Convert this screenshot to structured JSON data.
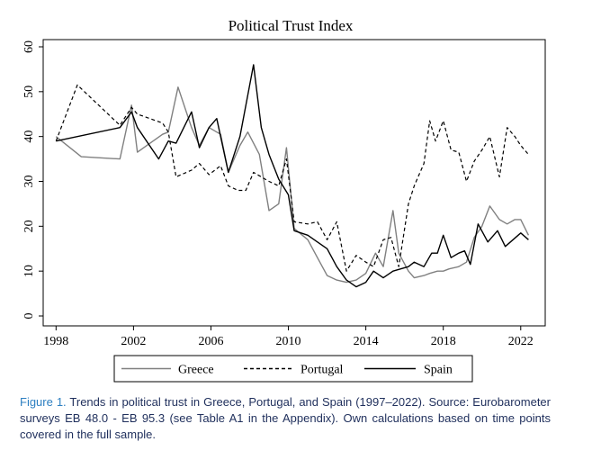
{
  "chart_data": {
    "type": "line",
    "title": "Political Trust Index",
    "xlabel": "",
    "ylabel": "",
    "xlim": [
      1997.8,
      2022.8
    ],
    "ylim": [
      0,
      60
    ],
    "xticks": [
      1998,
      2002,
      2006,
      2010,
      2014,
      2018,
      2022
    ],
    "yticks": [
      0,
      10,
      20,
      30,
      40,
      50,
      60
    ],
    "grid": false,
    "legend_position": "bottom",
    "series": [
      {
        "name": "Greece",
        "color": "#808080",
        "dash": "solid",
        "x": [
          1998,
          1999.3,
          2001.3,
          2001.9,
          2002.2,
          2003.5,
          2003.8,
          2004.3,
          2005,
          2005.4,
          2005.9,
          2006.5,
          2006.9,
          2007.5,
          2007.9,
          2008.5,
          2009,
          2009.5,
          2009.9,
          2010.3,
          2011,
          2011.5,
          2012,
          2012.5,
          2013,
          2013.5,
          2014,
          2014.5,
          2014.9,
          2015.4,
          2015.7,
          2016.2,
          2016.5,
          2017,
          2017.3,
          2017.7,
          2018,
          2018.3,
          2018.8,
          2019.2,
          2019.6,
          2020,
          2020.4,
          2020.9,
          2021.3,
          2021.7,
          2022,
          2022.4
        ],
        "values": [
          40,
          35.5,
          35,
          47,
          36.5,
          40.5,
          41,
          51,
          42,
          38,
          42,
          40.5,
          32,
          38,
          41,
          36,
          23.5,
          25,
          37.5,
          19.5,
          17,
          13,
          9,
          8,
          7.5,
          8,
          9.5,
          14,
          11,
          23.5,
          14,
          10,
          8.5,
          9,
          9.5,
          10,
          10,
          10.5,
          11,
          12,
          17.5,
          20,
          24.5,
          21.5,
          20.5,
          21.5,
          21.5,
          18
        ]
      },
      {
        "name": "Portugal",
        "color": "#000000",
        "dash": "dashed",
        "x": [
          1998,
          1999.1,
          2001.3,
          2001.9,
          2002.2,
          2003.5,
          2003.8,
          2004.2,
          2005,
          2005.4,
          2005.9,
          2006.5,
          2006.9,
          2007.4,
          2007.8,
          2008.2,
          2009,
          2009.5,
          2009.9,
          2010.3,
          2011,
          2011.5,
          2012,
          2012.5,
          2013,
          2013.5,
          2014,
          2014.4,
          2014.9,
          2015.3,
          2015.7,
          2016.2,
          2016.5,
          2017,
          2017.3,
          2017.6,
          2018,
          2018.4,
          2018.8,
          2019.2,
          2019.6,
          2020,
          2020.4,
          2020.9,
          2021.3,
          2021.7,
          2022,
          2022.4
        ],
        "values": [
          39,
          51.5,
          42.5,
          46.5,
          45,
          43,
          41,
          31,
          32.5,
          34,
          31.5,
          33.5,
          29,
          28,
          28,
          32,
          30,
          29,
          35,
          21,
          20.5,
          21,
          17,
          21,
          10,
          13.5,
          12,
          11,
          17,
          17.5,
          11,
          25,
          29,
          34,
          43.5,
          39,
          43.5,
          37,
          36.5,
          30,
          34.5,
          37,
          40,
          31,
          42,
          40,
          38,
          36
        ]
      },
      {
        "name": "Spain",
        "color": "#000000",
        "dash": "solid",
        "x": [
          1998,
          2001.3,
          2001.9,
          2002.2,
          2003.3,
          2003.8,
          2004.2,
          2005,
          2005.4,
          2005.9,
          2006.3,
          2006.9,
          2007.5,
          2008.2,
          2008.6,
          2009,
          2009.5,
          2010,
          2010.3,
          2011,
          2011.5,
          2012,
          2012.5,
          2013,
          2013.5,
          2014,
          2014.4,
          2014.9,
          2015.4,
          2015.8,
          2016.2,
          2016.5,
          2017,
          2017.4,
          2017.7,
          2018,
          2018.4,
          2018.8,
          2019.1,
          2019.4,
          2019.8,
          2020.3,
          2020.8,
          2021.2,
          2021.6,
          2022,
          2022.4
        ],
        "values": [
          39,
          42,
          45.5,
          42,
          35,
          39,
          38.5,
          45.5,
          37.5,
          42,
          44,
          32,
          40,
          56,
          42,
          36,
          30.5,
          27,
          19,
          18,
          16.5,
          15,
          11,
          8,
          6.5,
          7.5,
          10,
          8.5,
          10,
          10.5,
          11,
          12,
          11,
          14,
          14,
          18,
          13,
          14,
          14.5,
          11.5,
          20.5,
          16.5,
          19,
          15.5,
          17,
          18.5,
          17
        ]
      }
    ]
  },
  "caption": {
    "label": "Figure 1.",
    "text": " Trends in political trust in Greece, Portugal, and Spain (1997–2022). Source: Eurobarometer surveys EB 48.0 - EB 95.3 (see Table A1 in the Appendix). Own calculations based on time points covered in the full sample."
  }
}
